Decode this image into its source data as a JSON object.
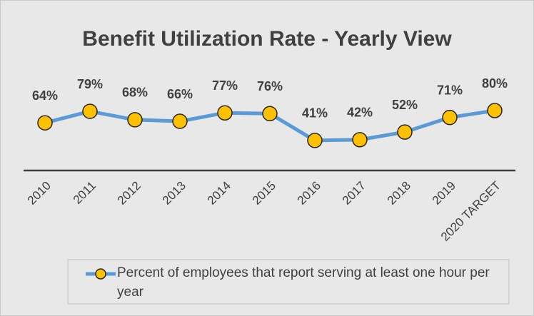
{
  "chart_data": {
    "type": "line",
    "title": "Benefit Utilization Rate - Yearly View",
    "categories": [
      "2010",
      "2011",
      "2012",
      "2013",
      "2014",
      "2015",
      "2016",
      "2017",
      "2018",
      "2019",
      "2020 TARGET"
    ],
    "series": [
      {
        "name": "Percent of employees that report serving at least one hour per year",
        "color": "#5b9bd5",
        "marker_color": "#ffc000",
        "values": [
          64,
          79,
          68,
          66,
          77,
          76,
          41,
          42,
          52,
          71,
          80
        ],
        "value_labels": [
          "64%",
          "79%",
          "68%",
          "66%",
          "77%",
          "76%",
          "41%",
          "42%",
          "52%",
          "71%",
          "80%"
        ]
      }
    ],
    "ylim": [
      0,
      100
    ],
    "legend": "bottom"
  }
}
